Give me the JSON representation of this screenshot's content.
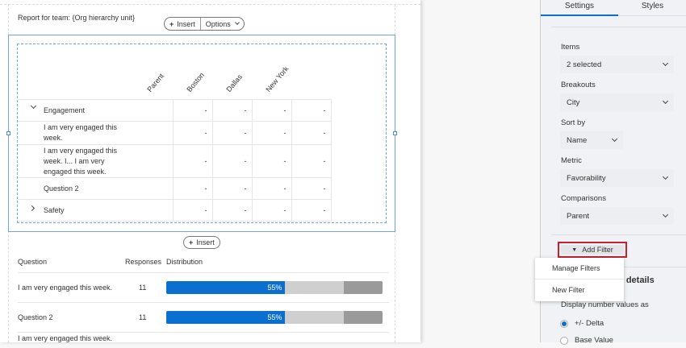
{
  "report": {
    "title": "Report for team: {Org hierarchy unit}",
    "insert_label": "Insert",
    "options_label": "Options"
  },
  "table": {
    "columns": [
      "Parent",
      "Boston",
      "Dallas",
      "New York"
    ],
    "rows": [
      {
        "label": "Engagement",
        "expand": "expanded",
        "values": [
          "-",
          "-",
          "-",
          "-"
        ]
      },
      {
        "label": "I am very engaged this week.",
        "values": [
          "-",
          "-",
          "-",
          "-"
        ]
      },
      {
        "label": "I am very engaged this week. I... I am very engaged this week.",
        "values": [
          "-",
          "-",
          "-",
          "-"
        ]
      },
      {
        "label": "Question 2",
        "values": [
          "-",
          "-",
          "-",
          "-"
        ]
      },
      {
        "label": "Safety",
        "expand": "collapsed",
        "values": [
          "-",
          "-",
          "-",
          "-"
        ]
      }
    ]
  },
  "insert2_label": "Insert",
  "distribution": {
    "headers": {
      "question": "Question",
      "responses": "Responses",
      "distribution": "Distribution"
    },
    "rows": [
      {
        "question": "I am very engaged this week.",
        "responses": "11",
        "label": "55%",
        "segments": [
          55,
          27,
          18
        ]
      },
      {
        "question": "Question 2",
        "responses": "11",
        "label": "55%",
        "segments": [
          55,
          27,
          18
        ]
      },
      {
        "question": "I am very engaged this week."
      }
    ],
    "colors": [
      "#0a6fcf",
      "#cfcfcf",
      "#9a9a9a"
    ]
  },
  "panel": {
    "tabs": [
      {
        "label": "Settings",
        "active": true
      },
      {
        "label": "Styles"
      }
    ],
    "fields": [
      {
        "label": "Items",
        "value": "2 selected"
      },
      {
        "label": "Breakouts",
        "value": "City"
      },
      {
        "label": "Sort by",
        "value": "Name"
      },
      {
        "label": "Metric",
        "value": "Favorability"
      },
      {
        "label": "Comparisons",
        "value": "Parent"
      }
    ],
    "add_filter": "Add Filter",
    "section_title": "ta details",
    "display_label": "Display number values as",
    "radios": [
      {
        "label": "+/- Delta",
        "checked": true
      },
      {
        "label": "Base Value",
        "checked": false
      }
    ]
  },
  "menu": {
    "items": [
      "Manage Filters",
      "New Filter"
    ]
  },
  "accent": "#0a6fcf",
  "highlight": "#c8202e"
}
